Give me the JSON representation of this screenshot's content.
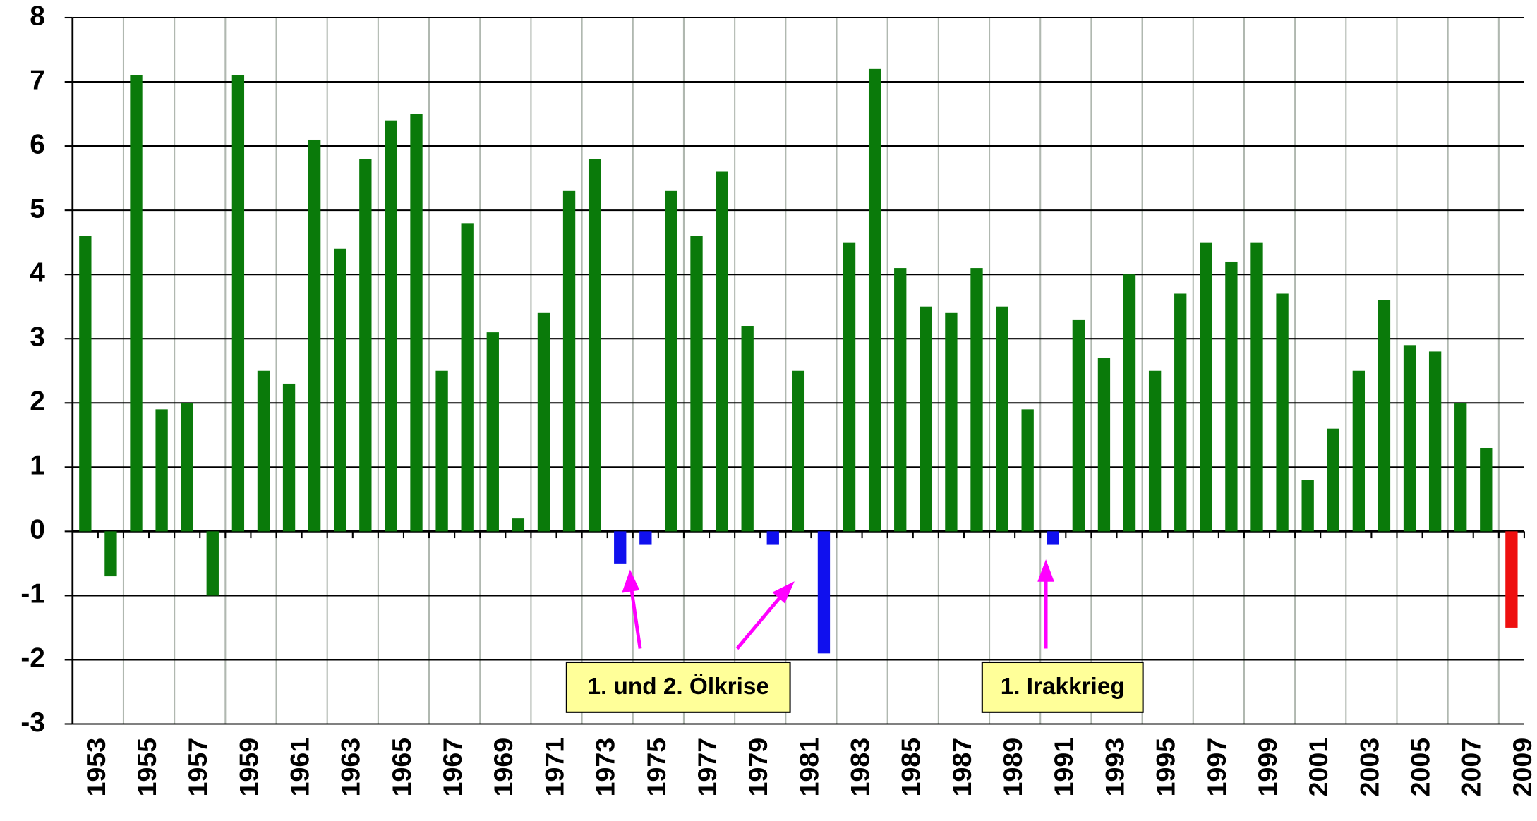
{
  "chart_data": {
    "type": "bar",
    "categories": [
      "1953",
      null,
      "1955",
      null,
      "1957",
      null,
      "1959",
      null,
      "1961",
      null,
      "1963",
      null,
      "1965",
      null,
      "1967",
      null,
      "1969",
      null,
      "1971",
      null,
      "1973",
      null,
      "1975",
      null,
      "1977",
      null,
      "1979",
      null,
      "1981",
      null,
      "1983",
      null,
      "1985",
      null,
      "1987",
      null,
      "1989",
      null,
      "1991",
      null,
      "1993",
      null,
      "1995",
      null,
      "1997",
      null,
      "1999",
      null,
      "2001",
      null,
      "2003",
      null,
      "2005",
      null,
      "2007",
      null,
      "2009"
    ],
    "values": [
      4.6,
      -0.7,
      7.1,
      1.9,
      2.0,
      -1.0,
      7.1,
      2.5,
      2.3,
      6.1,
      4.4,
      5.8,
      6.4,
      6.5,
      2.5,
      4.8,
      3.1,
      0.2,
      3.4,
      5.3,
      5.8,
      -0.5,
      -0.2,
      5.3,
      4.6,
      5.6,
      3.2,
      -0.2,
      2.5,
      -1.9,
      4.5,
      7.2,
      4.1,
      3.5,
      3.4,
      4.1,
      3.5,
      1.9,
      -0.2,
      3.3,
      2.7,
      4.0,
      2.5,
      3.7,
      4.5,
      4.2,
      4.5,
      3.7,
      0.8,
      1.6,
      2.5,
      3.6,
      2.9,
      2.8,
      2.0,
      1.3,
      -1.5
    ],
    "colors": [
      "#0a7a0a",
      "#0a7a0a",
      "#0a7a0a",
      "#0a7a0a",
      "#0a7a0a",
      "#0a7a0a",
      "#0a7a0a",
      "#0a7a0a",
      "#0a7a0a",
      "#0a7a0a",
      "#0a7a0a",
      "#0a7a0a",
      "#0a7a0a",
      "#0a7a0a",
      "#0a7a0a",
      "#0a7a0a",
      "#0a7a0a",
      "#0a7a0a",
      "#0a7a0a",
      "#0a7a0a",
      "#0a7a0a",
      "#1010ee",
      "#1010ee",
      "#0a7a0a",
      "#0a7a0a",
      "#0a7a0a",
      "#0a7a0a",
      "#1010ee",
      "#0a7a0a",
      "#1010ee",
      "#0a7a0a",
      "#0a7a0a",
      "#0a7a0a",
      "#0a7a0a",
      "#0a7a0a",
      "#0a7a0a",
      "#0a7a0a",
      "#0a7a0a",
      "#1010ee",
      "#0a7a0a",
      "#0a7a0a",
      "#0a7a0a",
      "#0a7a0a",
      "#0a7a0a",
      "#0a7a0a",
      "#0a7a0a",
      "#0a7a0a",
      "#0a7a0a",
      "#0a7a0a",
      "#0a7a0a",
      "#0a7a0a",
      "#0a7a0a",
      "#0a7a0a",
      "#0a7a0a",
      "#0a7a0a",
      "#0a7a0a",
      "#ee1010"
    ],
    "ylim": [
      -3,
      8
    ],
    "yticks": [
      -3,
      -2,
      -1,
      0,
      1,
      2,
      3,
      4,
      5,
      6,
      7,
      8
    ],
    "grid": true,
    "annotations": [
      "1. und 2. Ölkrise",
      "1. Irakkrieg"
    ]
  }
}
